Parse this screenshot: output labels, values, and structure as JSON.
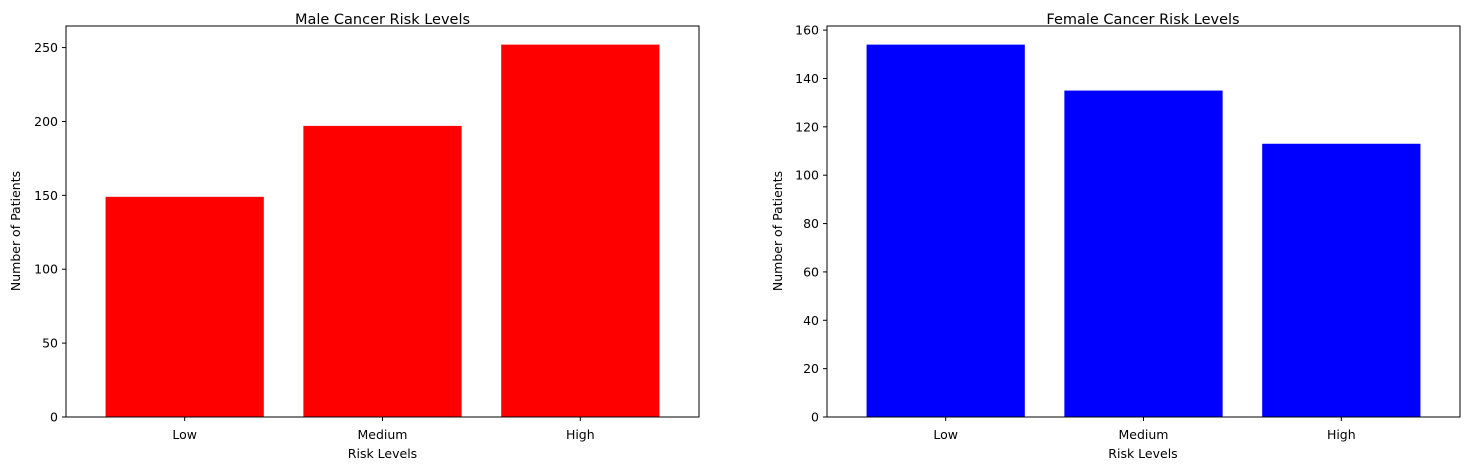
{
  "chart_data": [
    {
      "type": "bar",
      "title": "Male Cancer Risk Levels",
      "xlabel": "Risk Levels",
      "ylabel": "Number of Patients",
      "categories": [
        "Low",
        "Medium",
        "High"
      ],
      "values": [
        149,
        197,
        252
      ],
      "color": "#ff0000",
      "ylim": [
        0,
        264.6
      ],
      "yticks": [
        0,
        50,
        100,
        150,
        200,
        250
      ],
      "grid": false
    },
    {
      "type": "bar",
      "title": "Female Cancer Risk Levels",
      "xlabel": "Risk Levels",
      "ylabel": "Number of Patients",
      "categories": [
        "Low",
        "Medium",
        "High"
      ],
      "values": [
        154,
        135,
        113
      ],
      "color": "#0000ff",
      "ylim": [
        0,
        161.7
      ],
      "yticks": [
        0,
        20,
        40,
        60,
        80,
        100,
        120,
        140,
        160
      ],
      "grid": false
    }
  ]
}
